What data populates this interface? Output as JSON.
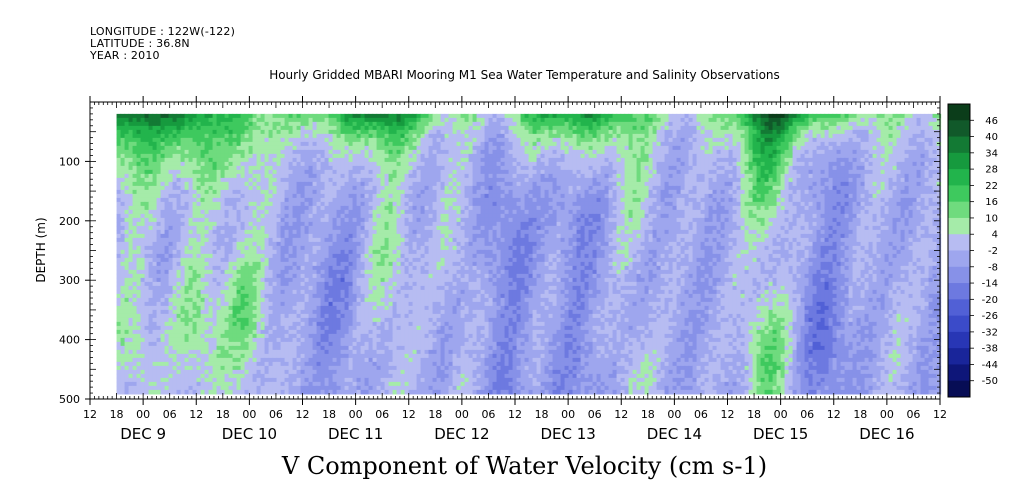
{
  "header": {
    "longitude": "LONGITUDE : 122W(-122)",
    "latitude": "LATITUDE : 36.8N",
    "year": "YEAR : 2010"
  },
  "chart_data": {
    "type": "heatmap",
    "title": "Hourly Gridded MBARI Mooring M1 Sea Water Temperature and Salinity Observations",
    "xlabel": "V Component of Water Velocity (cm s-1)",
    "ylabel": "DEPTH (m)",
    "x_range": [
      "2010-12-08T12:00",
      "2010-12-16T12:00"
    ],
    "data_x_range": [
      "2010-12-08T18:00",
      "2010-12-16T12:00"
    ],
    "ylim": [
      500,
      0
    ],
    "data_depth_range": [
      20,
      485
    ],
    "y_ticks": [
      100,
      200,
      300,
      400,
      500
    ],
    "hour_tick_labels": [
      "12",
      "18",
      "00",
      "06",
      "12",
      "18",
      "00",
      "06",
      "12",
      "18",
      "00",
      "06",
      "12",
      "18",
      "00",
      "06",
      "12",
      "18",
      "00",
      "06",
      "12",
      "18",
      "00",
      "06",
      "12",
      "18",
      "00",
      "06",
      "12",
      "18",
      "00",
      "06",
      "12"
    ],
    "day_labels": [
      "DEC  9",
      "DEC 10",
      "DEC 11",
      "DEC 12",
      "DEC 13",
      "DEC 14",
      "DEC 15",
      "DEC 16"
    ],
    "colorbar": {
      "levels": [
        "46",
        "40",
        "34",
        "28",
        "22",
        "16",
        "10",
        "4",
        "-2",
        "-8",
        "-14",
        "-20",
        "-26",
        "-32",
        "-38",
        "-44",
        "-50"
      ],
      "colors": [
        "#0b3d1a",
        "#11592a",
        "#137a34",
        "#169a3e",
        "#22b44c",
        "#3ec95e",
        "#6fdb7e",
        "#a5eba9",
        "#b7bcf2",
        "#9ea6ee",
        "#8791e8",
        "#6d79e0",
        "#5160d6",
        "#3b4bc9",
        "#2836b5",
        "#19259a",
        "#0e1679",
        "#070d55"
      ],
      "range": [
        -50,
        52
      ]
    },
    "pattern": {
      "surface_max": 36,
      "columns": [
        {
          "day_offset": 0.4,
          "value": 12
        },
        {
          "day_offset": 1.0,
          "value": 14
        },
        {
          "day_offset": 1.45,
          "value": 16
        },
        {
          "day_offset": 2.8,
          "value": 12
        },
        {
          "day_offset": 3.45,
          "value": 6
        },
        {
          "day_offset": 5.1,
          "value": 8
        },
        {
          "day_offset": 6.35,
          "value": 18
        },
        {
          "day_offset": 7.5,
          "value": 4
        },
        {
          "day_offset": 2.3,
          "value": -8
        },
        {
          "day_offset": 3.9,
          "value": -10
        },
        {
          "day_offset": 4.6,
          "value": -8
        },
        {
          "day_offset": 6.9,
          "value": -12
        }
      ]
    }
  }
}
